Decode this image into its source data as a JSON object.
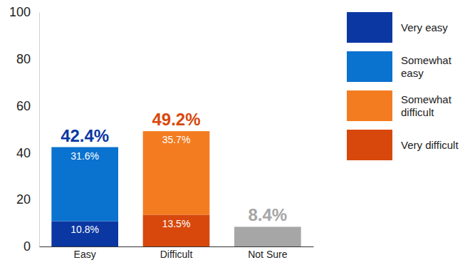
{
  "chart_data": {
    "type": "bar",
    "stacked": true,
    "data_labels": true,
    "legend": "right",
    "categories": [
      "Easy",
      "Difficult",
      "Not Sure"
    ],
    "series": [
      {
        "name": "Very easy",
        "color": "#0b37a3",
        "values": [
          10.8,
          null,
          null
        ],
        "value_labels": [
          "10.8%",
          null,
          null
        ]
      },
      {
        "name": "Somewhat easy",
        "color": "#0a72cf",
        "values": [
          31.6,
          null,
          null
        ],
        "value_labels": [
          "31.6%",
          null,
          null
        ]
      },
      {
        "name": "Somewhat difficult",
        "color": "#f47c20",
        "values": [
          null,
          35.7,
          null
        ],
        "value_labels": [
          null,
          "35.7%",
          null
        ]
      },
      {
        "name": "Very difficult",
        "color": "#d8480c",
        "values": [
          null,
          13.5,
          null
        ],
        "value_labels": [
          null,
          "13.5%",
          null
        ]
      },
      {
        "color": "#a6a6a6",
        "values": [
          null,
          null,
          8.4
        ]
      }
    ],
    "totals": [
      42.4,
      49.2,
      8.4
    ],
    "total_labels": [
      "42.4%",
      "49.2%",
      "8.4%"
    ],
    "ylim": [
      0,
      100
    ],
    "yticks": [
      0,
      20,
      40,
      60,
      80,
      100
    ]
  }
}
